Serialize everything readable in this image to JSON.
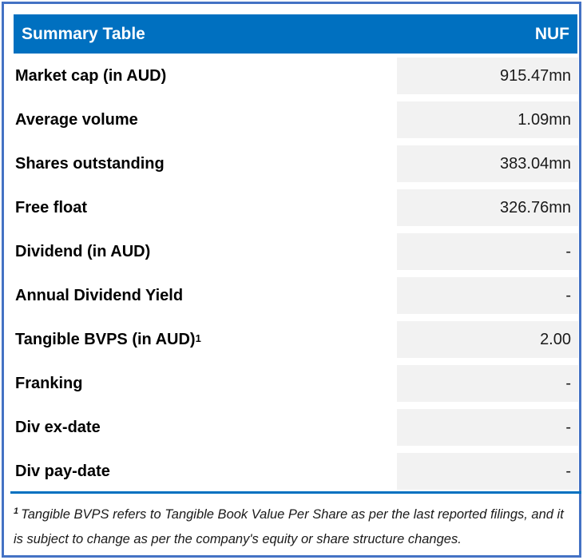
{
  "header": {
    "title": "Summary Table",
    "ticker": "NUF"
  },
  "rows": [
    {
      "label": "Market cap (in AUD)",
      "value": "915.47mn"
    },
    {
      "label": "Average volume",
      "value": "1.09mn"
    },
    {
      "label": "Shares outstanding",
      "value": "383.04mn"
    },
    {
      "label": "Free float",
      "value": "326.76mn"
    },
    {
      "label": "Dividend (in AUD)",
      "value": "-"
    },
    {
      "label": "Annual Dividend Yield",
      "value": "-"
    },
    {
      "label": "Tangible BVPS (in AUD)",
      "superscript": "1",
      "value": "2.00"
    },
    {
      "label": "Franking",
      "value": "-"
    },
    {
      "label": "Div ex-date",
      "value": "-"
    },
    {
      "label": "Div pay-date",
      "value": "-"
    }
  ],
  "footnote": {
    "superscript": "1",
    "text": "Tangible BVPS refers to Tangible Book Value Per Share as per the last reported filings, and it is subject to change as per the company's equity or share structure changes."
  },
  "colors": {
    "header_bg": "#0070C0",
    "panel_border": "#4472C4",
    "value_cell_bg": "#F2F2F2",
    "divider": "#0070C0"
  }
}
